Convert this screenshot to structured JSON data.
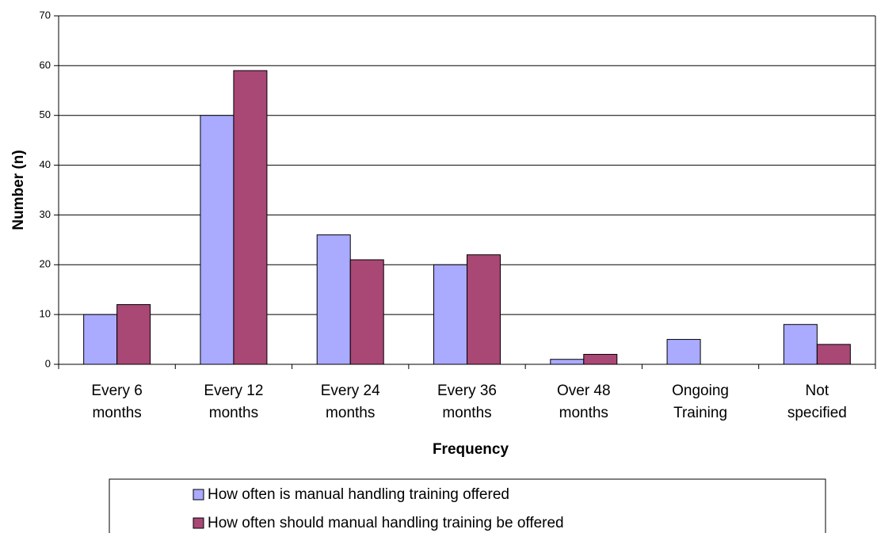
{
  "chart_data": {
    "type": "bar",
    "xlabel": "Frequency",
    "ylabel": "Number (n)",
    "categories": [
      "Every 6 months",
      "Every 12 months",
      "Every 24 months",
      "Every 36 months",
      "Over 48 months",
      "Ongoing Training",
      "Not specified"
    ],
    "series": [
      {
        "name": "How often is manual handling training offered",
        "color": "#aaaaff",
        "values": [
          10,
          50,
          26,
          20,
          1,
          5,
          8
        ]
      },
      {
        "name": "How often should manual handling training be offered",
        "color": "#a94775",
        "values": [
          12,
          59,
          21,
          22,
          2,
          0,
          4
        ]
      }
    ],
    "ylim": [
      0,
      70
    ],
    "yticks": [
      0,
      10,
      20,
      30,
      40,
      50,
      60,
      70
    ],
    "grid": true
  }
}
